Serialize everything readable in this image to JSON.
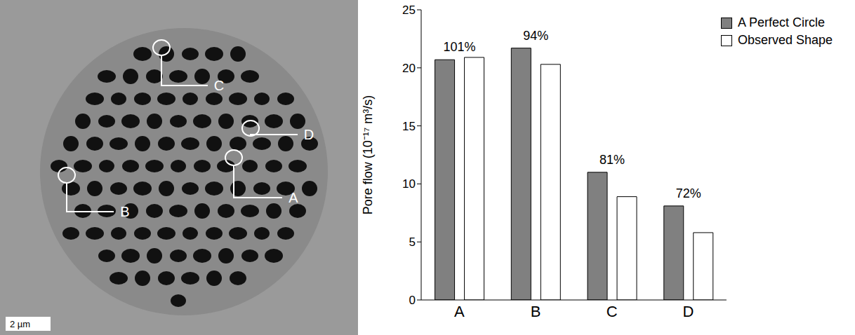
{
  "chart_data": {
    "type": "bar",
    "y_label": "Pore flow (10⁻¹⁷ m³/s)",
    "categories": [
      "A",
      "B",
      "C",
      "D"
    ],
    "series": [
      {
        "name": "A Perfect Circle",
        "color": "#808080",
        "values": [
          20.7,
          21.7,
          11.0,
          8.1
        ]
      },
      {
        "name": "Observed Shape",
        "color": "#ffffff",
        "values": [
          20.9,
          20.3,
          8.9,
          5.8
        ]
      }
    ],
    "annotations": [
      {
        "category": "A",
        "text": "101%"
      },
      {
        "category": "B",
        "text": "94%"
      },
      {
        "category": "C",
        "text": "81%"
      },
      {
        "category": "D",
        "text": "72%"
      }
    ],
    "ylim": [
      0,
      25
    ],
    "yticks": [
      0,
      5,
      10,
      15,
      20,
      25
    ],
    "grid": false,
    "legend": "top-right"
  },
  "micrograph": {
    "labels": [
      "A",
      "B",
      "C",
      "D"
    ],
    "scale_bar": "2 µm"
  }
}
